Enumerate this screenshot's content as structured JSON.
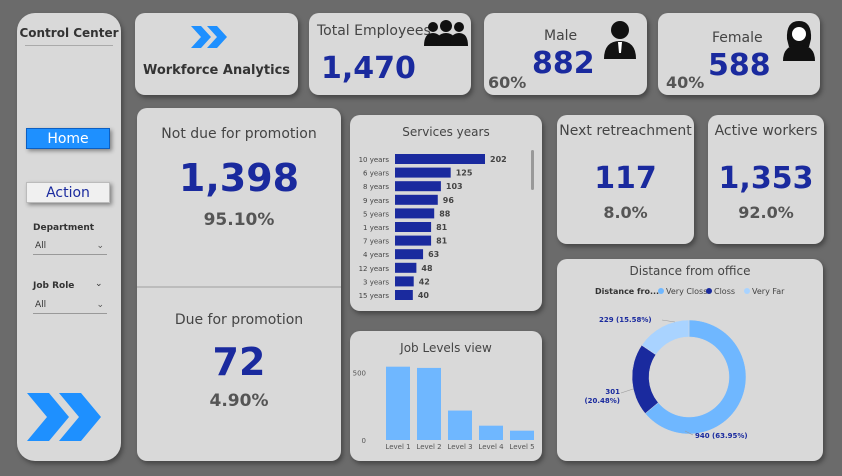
{
  "sidebar": {
    "title": "Control Center",
    "home_label": "Home",
    "action_label": "Action",
    "department_label": "Department",
    "department_value": "All",
    "jobrole_label": "Job Role",
    "jobrole_value": "All"
  },
  "header": {
    "app_title": "Workforce Analytics",
    "total_employees_label": "Total Employees",
    "total_employees_value": "1,470",
    "male_label": "Male",
    "male_value": "882",
    "male_pct": "60%",
    "female_label": "Female",
    "female_value": "588",
    "female_pct": "40%"
  },
  "promotion": {
    "not_due_label": "Not due for promotion",
    "not_due_value": "1,398",
    "not_due_pct": "95.10%",
    "due_label": "Due for promotion",
    "due_value": "72",
    "due_pct": "4.90%"
  },
  "retrenchment": {
    "label": "Next retreachment",
    "value": "117",
    "pct": "8.0%"
  },
  "active": {
    "label": "Active workers",
    "value": "1,353",
    "pct": "92.0%"
  },
  "colors": {
    "accent": "#1e90ff",
    "kpi": "#1a2a9e",
    "bar_dark": "#1a2a9e",
    "bar_light": "#6fb7ff",
    "very_close": "#6fb7ff",
    "close": "#1a2a9e",
    "very_far": "#a9d3ff"
  },
  "chart_data": [
    {
      "type": "bar",
      "orientation": "horizontal",
      "title": "Services years",
      "categories": [
        "10 years",
        "6 years",
        "8 years",
        "9 years",
        "5 years",
        "1 years",
        "7 years",
        "4 years",
        "12 years",
        "3 years",
        "15 years"
      ],
      "values": [
        202,
        125,
        103,
        96,
        88,
        81,
        81,
        63,
        48,
        42,
        40
      ]
    },
    {
      "type": "bar",
      "title": "Job Levels view",
      "categories": [
        "Level 1",
        "Level 2",
        "Level 3",
        "Level 4",
        "Level 5"
      ],
      "values": [
        543,
        534,
        218,
        106,
        69
      ],
      "yticks": [
        "0",
        "500"
      ],
      "ylim": [
        0,
        600
      ]
    },
    {
      "type": "pie",
      "title": "Distance from office",
      "legend_title": "Distance fro...",
      "legend_position": "top",
      "labels": [
        "Very Closs",
        "Closs",
        "Very Far"
      ],
      "values": [
        940,
        301,
        229
      ],
      "data_labels": [
        "940 (63.95%)",
        "301 (20.48%)",
        "229 (15.58%)"
      ]
    }
  ]
}
